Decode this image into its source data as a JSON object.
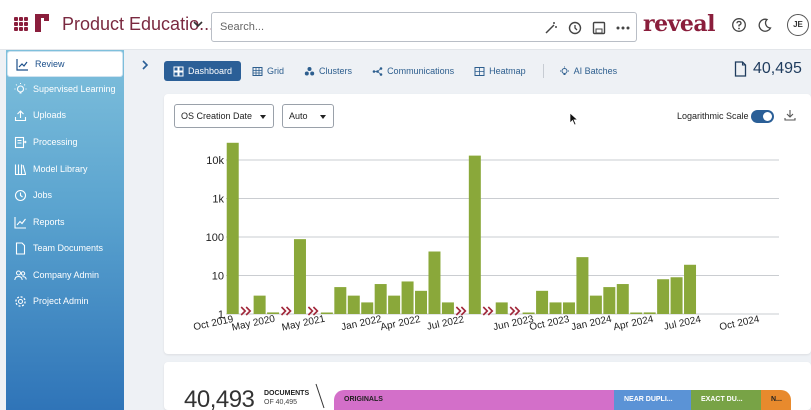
{
  "header": {
    "app_title": "Product Educatio...",
    "search_placeholder": "Search...",
    "logo_text": "reveal",
    "avatar_initials": "JE"
  },
  "sidebar": {
    "items": [
      {
        "label": "Review",
        "icon": "chart-line-icon",
        "active": true
      },
      {
        "label": "Supervised Learning",
        "icon": "lightbulb-icon"
      },
      {
        "label": "Uploads",
        "icon": "upload-icon"
      },
      {
        "label": "Processing",
        "icon": "processing-icon"
      },
      {
        "label": "Model Library",
        "icon": "library-icon"
      },
      {
        "label": "Jobs",
        "icon": "clock-icon"
      },
      {
        "label": "Reports",
        "icon": "reports-icon"
      },
      {
        "label": "Team Documents",
        "icon": "document-icon"
      },
      {
        "label": "Company Admin",
        "icon": "users-icon"
      },
      {
        "label": "Project Admin",
        "icon": "gear-icon"
      }
    ]
  },
  "tabs": [
    {
      "label": "Dashboard",
      "active": true
    },
    {
      "label": "Grid"
    },
    {
      "label": "Clusters"
    },
    {
      "label": "Communications"
    },
    {
      "label": "Heatmap"
    },
    {
      "label": "AI Batches"
    }
  ],
  "doc_count": "40,495",
  "controls": {
    "date_field": "OS Creation Date",
    "interval": "Auto",
    "log_scale_label": "Logarithmic Scale",
    "log_scale_on": true
  },
  "chart_data": {
    "type": "bar",
    "yscale": "log",
    "ylim": [
      1,
      30000
    ],
    "yticks": [
      {
        "label": "1",
        "value": 1
      },
      {
        "label": "10",
        "value": 10
      },
      {
        "label": "100",
        "value": 100
      },
      {
        "label": "1k",
        "value": 1000
      },
      {
        "label": "10k",
        "value": 10000
      }
    ],
    "grid": true,
    "bar_color": "#8aa83a",
    "gap_marker_color": "#a1273a",
    "x_tick_labels": [
      "Oct 2019",
      "May 2020",
      "May 2021",
      "Jan 2022",
      "Apr 2022",
      "Jul 2022",
      "Jun 2023",
      "Oct 2023",
      "Jan 2024",
      "Apr 2024",
      "Jul 2024",
      "Oct 2024"
    ],
    "bars": [
      {
        "value": 28000
      },
      {
        "gap": true
      },
      {
        "value": 3
      },
      {
        "value": 1.1
      },
      {
        "gap": true
      },
      {
        "value": 88
      },
      {
        "gap": true
      },
      {
        "value": 1
      },
      {
        "value": 5
      },
      {
        "value": 3
      },
      {
        "value": 2
      },
      {
        "value": 6
      },
      {
        "value": 3
      },
      {
        "value": 7
      },
      {
        "value": 4
      },
      {
        "value": 42
      },
      {
        "value": 2
      },
      {
        "gap": true
      },
      {
        "value": 13000
      },
      {
        "gap": true
      },
      {
        "value": 2
      },
      {
        "gap": true
      },
      {
        "value": 1
      },
      {
        "value": 4
      },
      {
        "value": 2
      },
      {
        "value": 2
      },
      {
        "value": 30
      },
      {
        "value": 3
      },
      {
        "value": 5
      },
      {
        "value": 6
      },
      {
        "value": 1
      },
      {
        "value": 1.1
      },
      {
        "value": 8
      },
      {
        "value": 9
      },
      {
        "value": 19
      }
    ]
  },
  "summary": {
    "count": "40,493",
    "docs_label": "DOCUMENTS",
    "of_label": "OF 40,495",
    "segments": [
      {
        "label": "ORIGINALS",
        "color": "#d36fc9"
      },
      {
        "label": "NEAR DUPLI...",
        "color": "#5b93d6"
      },
      {
        "label": "EXACT DU...",
        "color": "#78a346"
      },
      {
        "label": "N...",
        "color": "#e88a2d"
      }
    ]
  }
}
